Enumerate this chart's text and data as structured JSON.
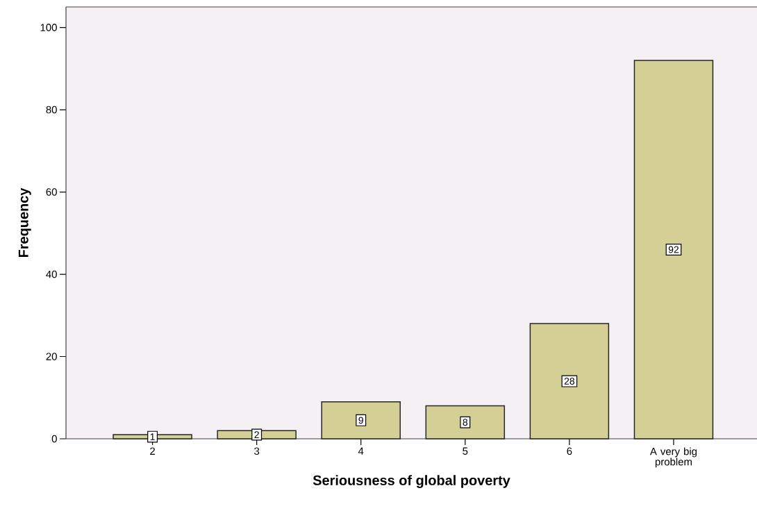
{
  "chart_data": {
    "type": "bar",
    "xlabel": "Seriousness of global poverty",
    "ylabel": "Frequency",
    "categories": [
      "2",
      "3",
      "4",
      "5",
      "6",
      "A very big problem"
    ],
    "values": [
      1,
      2,
      9,
      8,
      28,
      92
    ],
    "color": "#d3cf95",
    "ylim": [
      0,
      105
    ],
    "yticks": [
      0,
      20,
      40,
      60,
      80,
      100
    ],
    "data_labels": true
  }
}
